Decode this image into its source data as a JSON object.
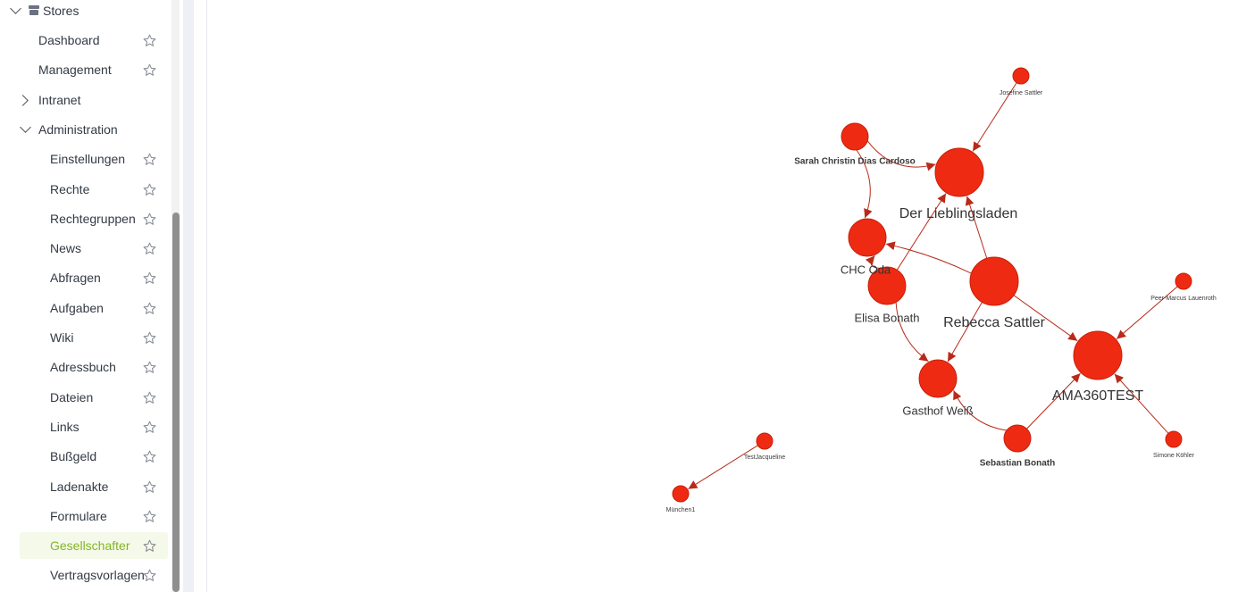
{
  "sidebar": {
    "section": {
      "label": "Stores"
    },
    "items": [
      {
        "key": "dashboard",
        "label": "Dashboard",
        "level": 1,
        "star": true
      },
      {
        "key": "management",
        "label": "Management",
        "level": 1,
        "star": true
      },
      {
        "key": "intranet",
        "label": "Intranet",
        "level": 1,
        "chevron": "right",
        "star": false
      },
      {
        "key": "administration",
        "label": "Administration",
        "level": 1,
        "chevron": "down",
        "star": false
      },
      {
        "key": "einstellungen",
        "label": "Einstellungen",
        "level": 2,
        "star": true
      },
      {
        "key": "rechte",
        "label": "Rechte",
        "level": 2,
        "star": true
      },
      {
        "key": "rechtegruppen",
        "label": "Rechtegruppen",
        "level": 2,
        "star": true
      },
      {
        "key": "news",
        "label": "News",
        "level": 2,
        "star": true
      },
      {
        "key": "abfragen",
        "label": "Abfragen",
        "level": 2,
        "star": true
      },
      {
        "key": "aufgaben",
        "label": "Aufgaben",
        "level": 2,
        "star": true
      },
      {
        "key": "wiki",
        "label": "Wiki",
        "level": 2,
        "star": true
      },
      {
        "key": "adressbuch",
        "label": "Adressbuch",
        "level": 2,
        "star": true
      },
      {
        "key": "dateien",
        "label": "Dateien",
        "level": 2,
        "star": true
      },
      {
        "key": "links",
        "label": "Links",
        "level": 2,
        "star": true
      },
      {
        "key": "bussgeld",
        "label": "Bußgeld",
        "level": 2,
        "star": true
      },
      {
        "key": "ladenakte",
        "label": "Ladenakte",
        "level": 2,
        "star": true
      },
      {
        "key": "formulare",
        "label": "Formulare",
        "level": 2,
        "star": true
      },
      {
        "key": "gesellschafter",
        "label": "Gesellschafter",
        "level": 2,
        "star": true,
        "active": true
      },
      {
        "key": "vertragsvorlagen",
        "label": "Vertragsvorlagen",
        "level": 2,
        "star": true
      }
    ]
  },
  "colors": {
    "node": "#ee2b12",
    "edge": "#b82a1a",
    "active_text": "#84b526",
    "active_bg": "#f4f9ea"
  },
  "graph": {
    "nodes": [
      {
        "id": "josefine",
        "label": "Josefine Sattler"
      },
      {
        "id": "sarah",
        "label": "Sarah Christin Dias Cardoso"
      },
      {
        "id": "lieblingsladen",
        "label": "Der Lieblingsladen"
      },
      {
        "id": "chc",
        "label": "CHC Oda"
      },
      {
        "id": "elisa",
        "label": "Elisa Bonath"
      },
      {
        "id": "rebecca",
        "label": "Rebecca  Sattler"
      },
      {
        "id": "peermarcus",
        "label": "Peer-Marcus Lauenroth"
      },
      {
        "id": "ama",
        "label": "AMA360TEST"
      },
      {
        "id": "gasthof",
        "label": "Gasthof Weiß"
      },
      {
        "id": "sebastian",
        "label": "Sebastian Bonath"
      },
      {
        "id": "simone",
        "label": "Simone Köhler"
      },
      {
        "id": "testjacqueline",
        "label": "TestJacqueline"
      },
      {
        "id": "muenchen",
        "label": "München1"
      }
    ],
    "edges": [
      {
        "from": "josefine",
        "to": "lieblingsladen"
      },
      {
        "from": "sarah",
        "to": "lieblingsladen"
      },
      {
        "from": "sarah",
        "to": "chc"
      },
      {
        "from": "elisa",
        "to": "chc"
      },
      {
        "from": "elisa",
        "to": "lieblingsladen"
      },
      {
        "from": "elisa",
        "to": "gasthof"
      },
      {
        "from": "rebecca",
        "to": "lieblingsladen"
      },
      {
        "from": "rebecca",
        "to": "chc"
      },
      {
        "from": "rebecca",
        "to": "gasthof"
      },
      {
        "from": "rebecca",
        "to": "ama"
      },
      {
        "from": "peermarcus",
        "to": "ama"
      },
      {
        "from": "sebastian",
        "to": "ama"
      },
      {
        "from": "sebastian",
        "to": "gasthof"
      },
      {
        "from": "simone",
        "to": "ama"
      },
      {
        "from": "testjacqueline",
        "to": "muenchen"
      }
    ]
  }
}
